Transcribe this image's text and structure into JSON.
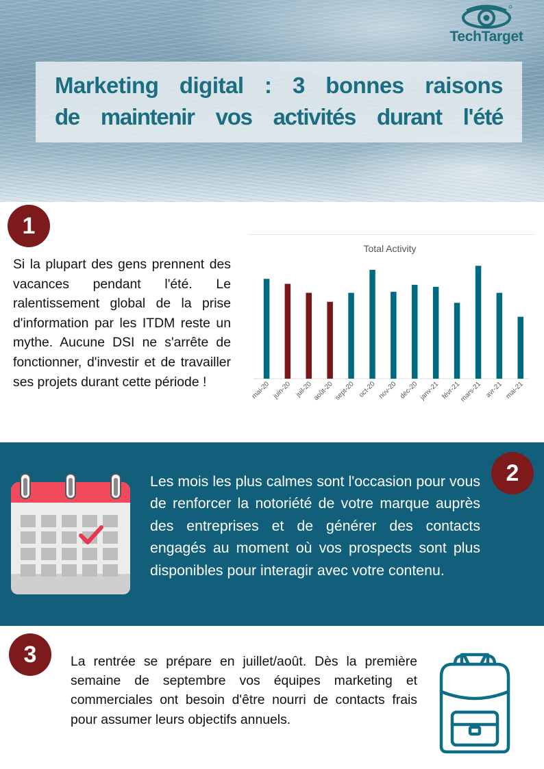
{
  "header": {
    "brand": "TechTarget",
    "title_line1": "Marketing digital : 3 bonnes raisons",
    "title_line2": "de maintenir vos activités durant l'été"
  },
  "sections": [
    {
      "number": "1",
      "text": "Si la plupart des gens prennent des vacances pendant l'été. Le ralentissement global de la prise d'information par les ITDM reste un mythe. Aucune DSI ne s'arrête de fonctionner, d'investir et de travailler ses projets durant cette période !"
    },
    {
      "number": "2",
      "text": "Les mois les plus calmes sont l'occasion pour vous de renforcer la notoriété de votre marque auprès des entreprises et de générer des contacts engagés au moment où vos prospects sont plus disponibles pour interagir avec votre contenu."
    },
    {
      "number": "3",
      "text": "La rentrée se prépare en juillet/août. Dès la première semaine de septembre vos équipes marketing et commerciales ont besoin d'être nourri de contacts frais pour assumer leurs objectifs annuels."
    }
  ],
  "icons": {
    "logo": "eye-logo-icon",
    "calendar": "calendar-icon",
    "backpack": "backpack-icon"
  },
  "colors": {
    "teal": "#125f7b",
    "title_teal": "#1b6e82",
    "dark_red": "#7c1a1c",
    "bar_teal": "#006b80",
    "bar_red": "#7a1518"
  },
  "chart_data": {
    "type": "bar",
    "title": "Total Activity",
    "xlabel": "",
    "ylabel": "",
    "grid": false,
    "legend": "none",
    "categories": [
      "mai-20",
      "juin-20",
      "juil-20",
      "août-20",
      "sept-20",
      "oct-20",
      "nov-20",
      "déc-20",
      "janv-21",
      "févr-21",
      "mars-21",
      "avr-21",
      "mai-21"
    ],
    "values": [
      100,
      95,
      86,
      77,
      86,
      109,
      87,
      94,
      92,
      76,
      113,
      86,
      62
    ],
    "highlighted": [
      "juin-20",
      "juil-20",
      "août-20"
    ],
    "ylim": [
      0,
      120
    ]
  }
}
